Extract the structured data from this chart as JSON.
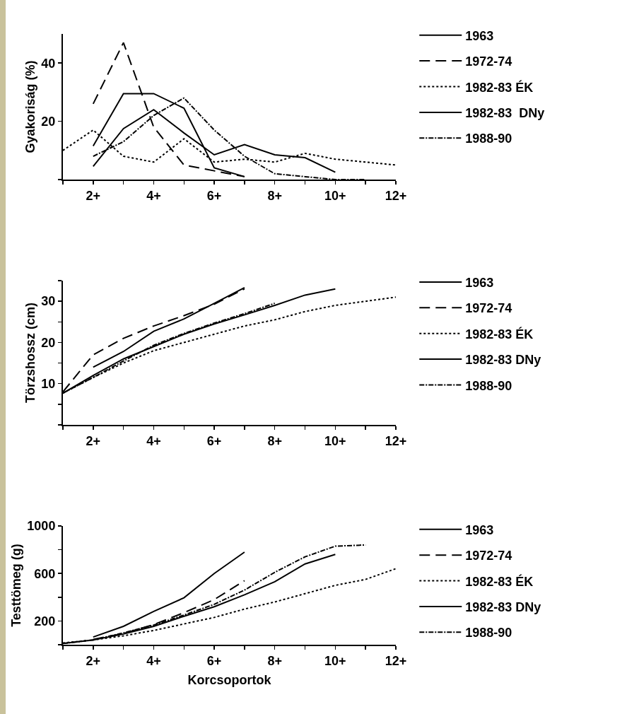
{
  "chart_data": [
    {
      "type": "line",
      "ylabel": "Gyakoriság (%)",
      "categories": [
        null,
        "2+",
        null,
        "4+",
        null,
        "6+",
        null,
        "8+",
        null,
        "10+",
        null,
        "12+"
      ],
      "ylim": [
        0,
        50
      ],
      "yticks": [
        {
          "value": 0,
          "label": null
        },
        20,
        40
      ],
      "grid": false,
      "legend": "right",
      "marker": "none",
      "series": [
        {
          "name": "1963",
          "color": "#000000",
          "line_style": "solid",
          "values": [
            null,
            11.5,
            29.5,
            29.5,
            24.5,
            4,
            1,
            null,
            null,
            null,
            null,
            null
          ]
        },
        {
          "name": "1972-74",
          "color": "#000000",
          "line_style": "dashed",
          "values": [
            null,
            26,
            47,
            18,
            5,
            3,
            1,
            null,
            null,
            null,
            null,
            null
          ]
        },
        {
          "name": "1982-83 ÉK",
          "color": "#000000",
          "line_style": "dotted",
          "values": [
            10,
            17,
            8,
            6,
            14,
            6,
            7,
            6,
            9,
            7,
            6,
            5
          ]
        },
        {
          "name": "1982-83  DNy",
          "color": "#000000",
          "line_style": "solid",
          "values": [
            null,
            4.5,
            17.5,
            24,
            16,
            8.5,
            12,
            8.5,
            7.5,
            2.5,
            null,
            null
          ]
        },
        {
          "name": "1988-90",
          "color": "#000000",
          "line_style": "dashdot",
          "values": [
            null,
            8,
            13,
            22,
            28,
            17,
            8,
            2,
            1,
            0,
            0,
            null
          ]
        }
      ]
    },
    {
      "type": "line",
      "ylabel": "Törzshossz (cm)",
      "categories": [
        null,
        "2+",
        null,
        "4+",
        null,
        "6+",
        null,
        "8+",
        null,
        "10+",
        null,
        "12+"
      ],
      "ylim": [
        0,
        35
      ],
      "yticks": [
        {
          "value": 0,
          "label": null
        },
        {
          "value": 5,
          "label": null
        },
        10,
        {
          "value": 15,
          "label": null
        },
        20,
        {
          "value": 25,
          "label": null
        },
        30,
        {
          "value": 35,
          "label": null
        }
      ],
      "grid": false,
      "legend": "right",
      "marker": "none",
      "series": [
        {
          "name": "1963",
          "color": "#000000",
          "line_style": "solid",
          "values": [
            null,
            14,
            17.8,
            22.7,
            25.7,
            29.5,
            33.3,
            null,
            null,
            null,
            null,
            null
          ]
        },
        {
          "name": "1972-74",
          "color": "#000000",
          "line_style": "dashed",
          "values": [
            8,
            17,
            21,
            24,
            26.5,
            29.3,
            33,
            null,
            null,
            null,
            null,
            null
          ]
        },
        {
          "name": "1982-83 ÉK",
          "color": "#000000",
          "line_style": "dotted",
          "values": [
            7.7,
            11.5,
            15,
            18,
            20,
            22,
            24,
            25.5,
            27.5,
            29,
            30,
            31
          ]
        },
        {
          "name": "1982-83 DNy",
          "color": "#000000",
          "line_style": "solid",
          "values": [
            7.7,
            12,
            16,
            19,
            22,
            24.5,
            26.7,
            29,
            31.5,
            33,
            null,
            null
          ]
        },
        {
          "name": "1988-90",
          "color": "#000000",
          "line_style": "dashdot",
          "values": [
            7.7,
            11.5,
            15.5,
            19.3,
            22.2,
            24.7,
            27,
            29.5,
            null,
            null,
            null,
            null
          ]
        }
      ]
    },
    {
      "type": "line",
      "xlabel": "Korcsoportok",
      "ylabel": "Testtömeg (g)",
      "categories": [
        null,
        "2+",
        null,
        "4+",
        null,
        "6+",
        null,
        "8+",
        null,
        "10+",
        null,
        "12+"
      ],
      "ylim": [
        0,
        1000
      ],
      "yticks": [
        {
          "value": 0,
          "label": null
        },
        200,
        {
          "value": 400,
          "label": null
        },
        600,
        {
          "value": 800,
          "label": null
        },
        1000
      ],
      "grid": false,
      "legend": "right",
      "marker": "none",
      "series": [
        {
          "name": "1963",
          "color": "#000000",
          "line_style": "solid",
          "values": [
            null,
            65,
            155,
            280,
            395,
            600,
            780,
            null,
            null,
            null,
            null,
            null
          ]
        },
        {
          "name": "1972-74",
          "color": "#000000",
          "line_style": "dashed",
          "values": [
            null,
            45,
            95,
            170,
            270,
            380,
            540,
            null,
            null,
            null,
            null,
            null
          ]
        },
        {
          "name": "1982-83 ÉK",
          "color": "#000000",
          "line_style": "dotted",
          "values": [
            15,
            40,
            75,
            120,
            175,
            230,
            300,
            360,
            430,
            500,
            550,
            640
          ]
        },
        {
          "name": "1982-83 DNy",
          "color": "#000000",
          "line_style": "solid",
          "values": [
            10,
            40,
            90,
            155,
            240,
            320,
            420,
            530,
            680,
            760,
            null,
            null
          ]
        },
        {
          "name": "1988-90",
          "color": "#000000",
          "line_style": "dashdot",
          "values": [
            10,
            40,
            100,
            165,
            250,
            340,
            460,
            610,
            740,
            830,
            840,
            null
          ]
        }
      ]
    }
  ]
}
